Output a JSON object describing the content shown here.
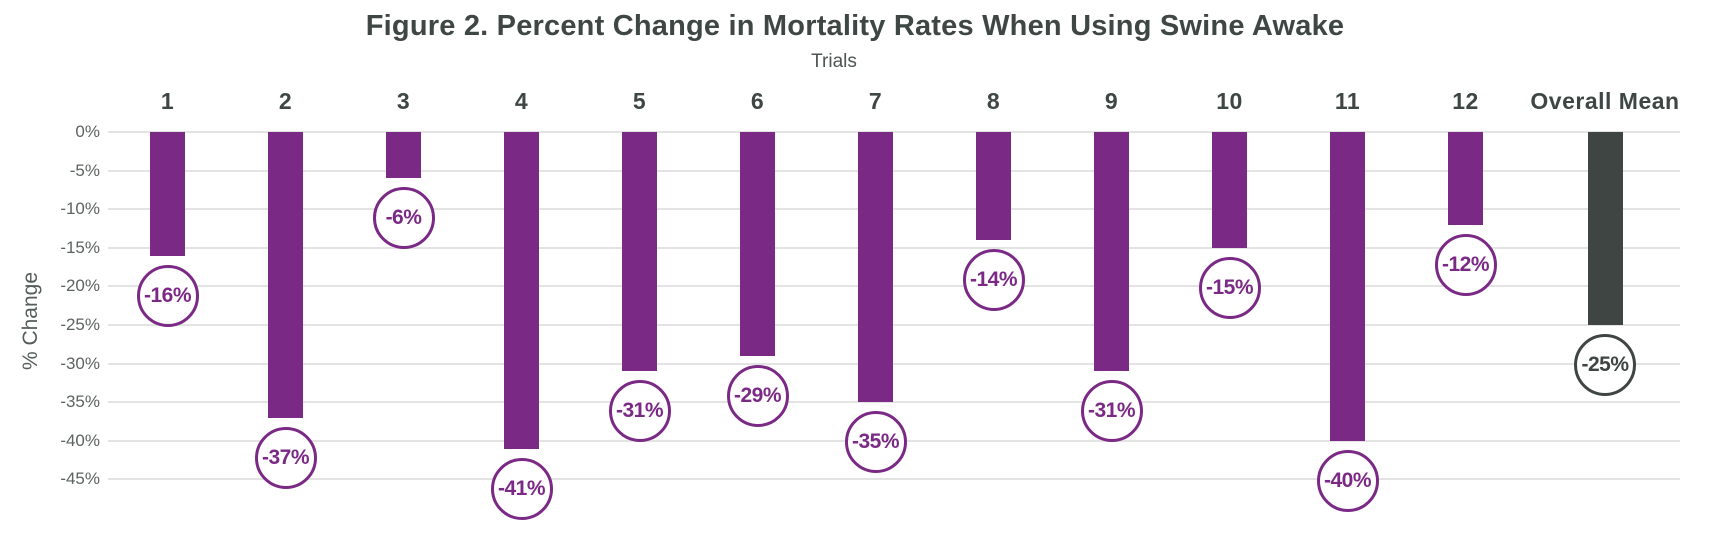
{
  "chart_data": {
    "type": "bar",
    "title": "Figure 2. Percent Change in Mortality Rates When Using Swine Awake",
    "x_axis_title": "Trials",
    "y_axis_label": "% Change",
    "categories": [
      "1",
      "2",
      "3",
      "4",
      "5",
      "6",
      "7",
      "8",
      "9",
      "10",
      "11",
      "12",
      "Overall Mean"
    ],
    "values": [
      -16,
      -37,
      -6,
      -41,
      -31,
      -29,
      -35,
      -14,
      -31,
      -15,
      -40,
      -12,
      -25
    ],
    "value_labels": [
      "-16%",
      "-37%",
      "-6%",
      "-41%",
      "-31%",
      "-29%",
      "-35%",
      "-14%",
      "-31%",
      "-15%",
      "-40%",
      "-12%",
      "-25%"
    ],
    "ylim": [
      -45,
      0
    ],
    "ytick_interval": 5,
    "ytick_labels": [
      "0%",
      "-5%",
      "-10%",
      "-15%",
      "-20%",
      "-25%",
      "-30%",
      "-35%",
      "-40%",
      "-45%"
    ],
    "grid": "horizontal",
    "legend": "none",
    "colors": {
      "trial_bar": "#7a2a85",
      "overall_mean_bar": "#3f4543",
      "badge_background": "#ffffff",
      "gridline": "#e3e3e3",
      "title_text": "#3e4743",
      "axis_text": "#5c6360",
      "column_header_text": "#3e4743"
    }
  }
}
